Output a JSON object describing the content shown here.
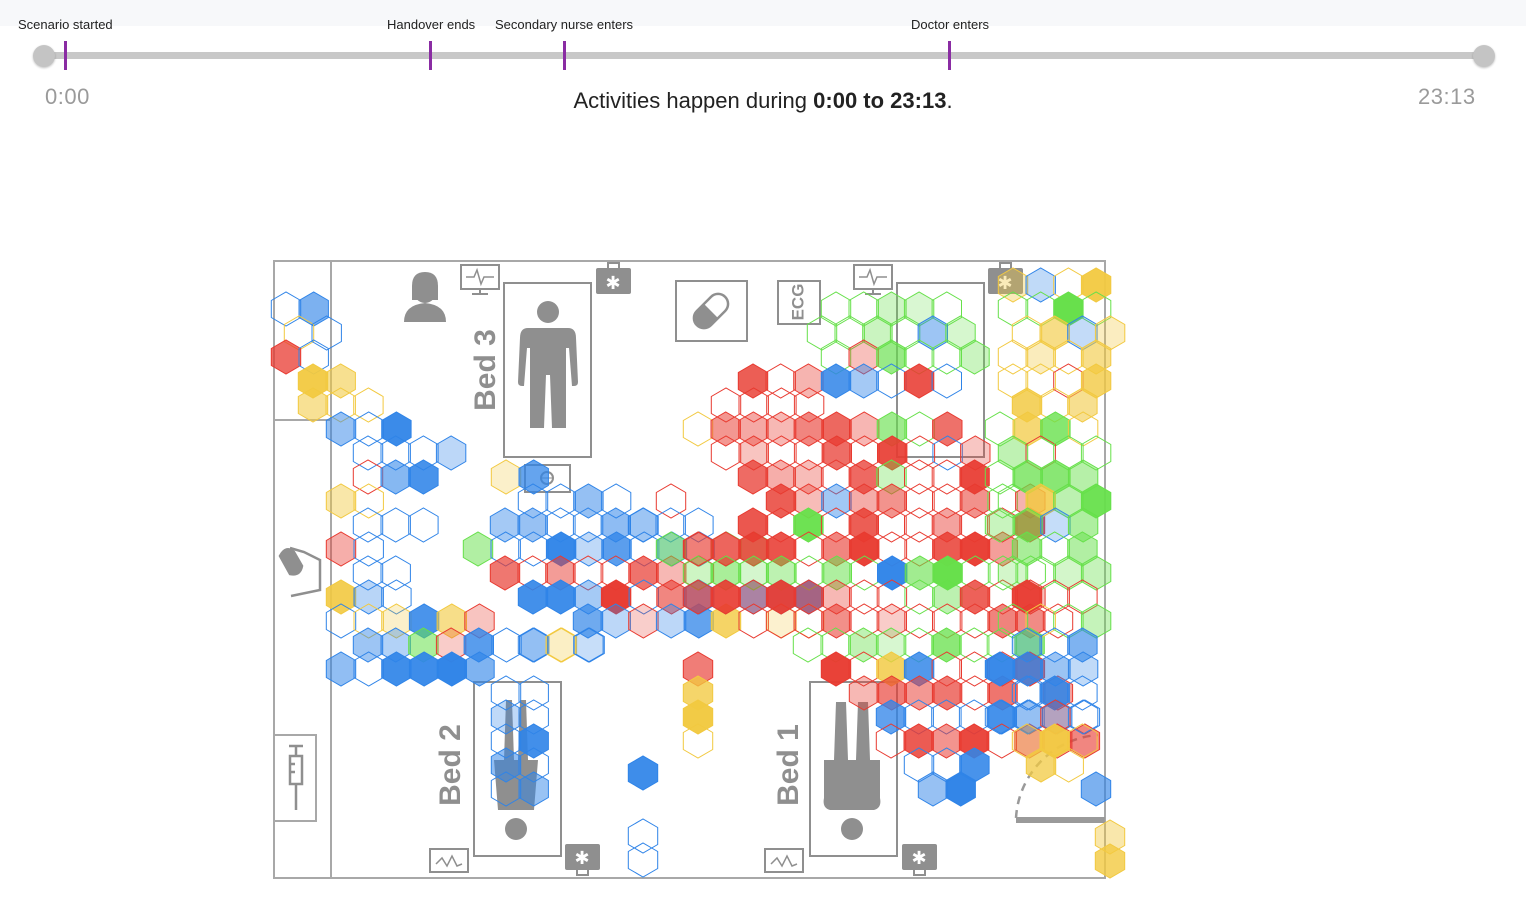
{
  "timeline": {
    "start_time": "0:00",
    "end_time": "23:13",
    "events": [
      {
        "label": "Scenario started",
        "pos": 0.015
      },
      {
        "label": "Handover ends",
        "pos": 0.268
      },
      {
        "label": "Secondary nurse enters",
        "pos": 0.361
      },
      {
        "label": "Doctor enters",
        "pos": 0.628
      }
    ],
    "marker_color": "#8a2ca3"
  },
  "caption": {
    "prefix": "Activities happen during ",
    "range": "0:00 to 23:13",
    "suffix": "."
  },
  "floorplan": {
    "beds": [
      {
        "label": "Bed 3"
      },
      {
        "label": "Bed 2"
      },
      {
        "label": "Bed 1"
      }
    ],
    "ecg_label": "ECG",
    "icons": [
      "nurse-icon",
      "monitor-icon",
      "first-aid-kit-icon",
      "pill-icon",
      "ecg-machine-icon",
      "hand-sanitizer-icon",
      "syringe-icon",
      "computer-icon",
      "patient-icon"
    ]
  },
  "colors": {
    "blue": "#2f84e8",
    "red": "#e83a30",
    "green": "#66e04a",
    "yellow": "#f2c940",
    "wall": "#a8a8a8",
    "icon": "#8f8f8f"
  }
}
